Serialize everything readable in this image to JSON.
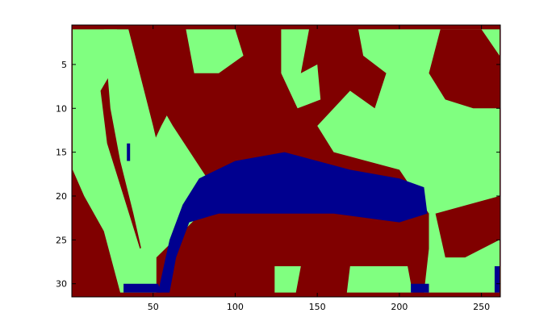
{
  "chart_data": {
    "type": "heatmap",
    "title": "",
    "xlabel": "",
    "ylabel": "",
    "x_range": [
      0.5,
      261.5
    ],
    "y_range": [
      0.5,
      31.5
    ],
    "y_reversed": true,
    "x_ticks": [
      "50",
      "100",
      "150",
      "200",
      "250"
    ],
    "y_ticks": [
      "5",
      "10",
      "15",
      "20",
      "25",
      "30"
    ],
    "grid": false,
    "legend": "none",
    "colors": {
      "1": "#00008f",
      "2": "#80ff80",
      "3": "#800000"
    },
    "background_class": 3,
    "n_cols": 261,
    "n_rows": 31,
    "regions": [
      {
        "class": 2,
        "name": "left-diagonal-band",
        "polygon": [
          [
            1,
            1
          ],
          [
            28,
            1
          ],
          [
            62,
            12
          ],
          [
            90,
            20
          ],
          [
            52,
            27
          ],
          [
            52,
            31
          ],
          [
            30,
            31
          ],
          [
            20,
            24
          ],
          [
            8,
            20
          ],
          [
            1,
            17
          ]
        ]
      },
      {
        "class": 3,
        "name": "left-inner-wedge",
        "polygon": [
          [
            40,
            1
          ],
          [
            70,
            1
          ],
          [
            72,
            6
          ],
          [
            55,
            12
          ],
          [
            40,
            18
          ],
          [
            45,
            21
          ],
          [
            50,
            25
          ],
          [
            42,
            26
          ],
          [
            32,
            20
          ],
          [
            22,
            14
          ],
          [
            18,
            8
          ]
        ]
      },
      {
        "class": 2,
        "name": "left-inner-strip",
        "polygon": [
          [
            20,
            1
          ],
          [
            35,
            1
          ],
          [
            50,
            12
          ],
          [
            60,
            20
          ],
          [
            50,
            26
          ],
          [
            44,
            27
          ],
          [
            38,
            22
          ],
          [
            30,
            16
          ],
          [
            24,
            10
          ]
        ]
      },
      {
        "class": 2,
        "name": "top-left-patch",
        "polygon": [
          [
            70,
            1
          ],
          [
            100,
            1
          ],
          [
            105,
            4
          ],
          [
            90,
            6
          ],
          [
            75,
            6
          ]
        ]
      },
      {
        "class": 2,
        "name": "top-center-patch",
        "polygon": [
          [
            128,
            1
          ],
          [
            145,
            1
          ],
          [
            140,
            6
          ],
          [
            150,
            5
          ],
          [
            152,
            9
          ],
          [
            138,
            10
          ],
          [
            128,
            6
          ]
        ]
      },
      {
        "class": 2,
        "name": "right-region",
        "polygon": [
          [
            175,
            1
          ],
          [
            261,
            1
          ],
          [
            261,
            17
          ],
          [
            240,
            20
          ],
          [
            218,
            22
          ],
          [
            200,
            17
          ],
          [
            160,
            15
          ],
          [
            150,
            12
          ],
          [
            170,
            8
          ],
          [
            185,
            10
          ],
          [
            192,
            6
          ],
          [
            178,
            4
          ]
        ]
      },
      {
        "class": 3,
        "name": "right-upper-inset",
        "polygon": [
          [
            225,
            1
          ],
          [
            250,
            1
          ],
          [
            261,
            4
          ],
          [
            261,
            10
          ],
          [
            245,
            10
          ],
          [
            228,
            9
          ],
          [
            218,
            6
          ]
        ]
      },
      {
        "class": 2,
        "name": "right-lower-region",
        "polygon": [
          [
            218,
            22
          ],
          [
            261,
            17
          ],
          [
            261,
            31
          ],
          [
            215,
            31
          ],
          [
            218,
            26
          ]
        ]
      },
      {
        "class": 3,
        "name": "right-lower-strip",
        "polygon": [
          [
            222,
            22
          ],
          [
            261,
            20
          ],
          [
            261,
            25
          ],
          [
            240,
            27
          ],
          [
            228,
            27
          ]
        ]
      },
      {
        "class": 1,
        "name": "blue-arch",
        "polygon": [
          [
            53,
            31
          ],
          [
            60,
            25
          ],
          [
            68,
            21
          ],
          [
            78,
            18
          ],
          [
            100,
            16
          ],
          [
            130,
            15
          ],
          [
            150,
            16
          ],
          [
            170,
            17
          ],
          [
            200,
            18
          ],
          [
            215,
            19
          ],
          [
            217,
            22
          ],
          [
            200,
            23
          ],
          [
            160,
            22
          ],
          [
            120,
            22
          ],
          [
            90,
            22
          ],
          [
            72,
            23
          ],
          [
            64,
            27
          ],
          [
            60,
            31
          ]
        ]
      },
      {
        "class": 2,
        "name": "left-blue-speck",
        "polygon": [
          [
            34,
            14
          ],
          [
            37,
            14
          ],
          [
            37,
            16
          ],
          [
            34,
            16
          ]
        ]
      },
      {
        "class": 1,
        "name": "left-blue-speck-core",
        "polygon": [
          [
            34,
            14
          ],
          [
            36,
            14
          ],
          [
            36,
            16
          ],
          [
            34,
            16
          ]
        ]
      },
      {
        "class": 2,
        "name": "bottom-center-patch",
        "polygon": [
          [
            124,
            28
          ],
          [
            140,
            28
          ],
          [
            137,
            31
          ],
          [
            124,
            31
          ]
        ]
      },
      {
        "class": 2,
        "name": "bottom-right-patch",
        "polygon": [
          [
            170,
            28
          ],
          [
            205,
            28
          ],
          [
            208,
            31
          ],
          [
            168,
            31
          ]
        ]
      },
      {
        "class": 1,
        "name": "bottom-left-blue",
        "polygon": [
          [
            32,
            30
          ],
          [
            53,
            30
          ],
          [
            55,
            31
          ],
          [
            32,
            31
          ]
        ]
      },
      {
        "class": 1,
        "name": "bottom-right-blue",
        "polygon": [
          [
            207,
            30
          ],
          [
            218,
            30
          ],
          [
            218,
            31
          ],
          [
            207,
            31
          ]
        ]
      },
      {
        "class": 1,
        "name": "bottom-edge-blue",
        "polygon": [
          [
            258,
            28
          ],
          [
            261,
            28
          ],
          [
            261,
            31
          ],
          [
            258,
            31
          ]
        ]
      }
    ]
  }
}
